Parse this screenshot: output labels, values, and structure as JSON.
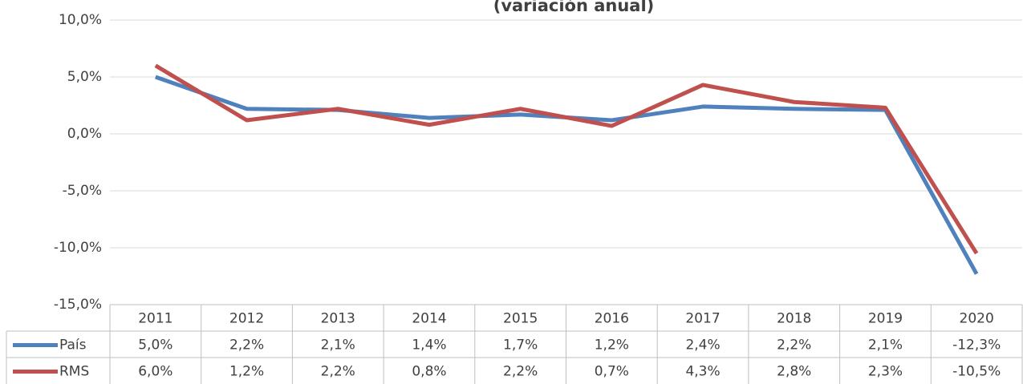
{
  "chart_data": {
    "type": "line",
    "title": "(variación anual)",
    "categories": [
      "2011",
      "2012",
      "2013",
      "2014",
      "2015",
      "2016",
      "2017",
      "2018",
      "2019",
      "2020"
    ],
    "series": [
      {
        "name": "País",
        "color": "#4f81bd",
        "values": [
          5.0,
          2.2,
          2.1,
          1.4,
          1.7,
          1.2,
          2.4,
          2.2,
          2.1,
          -12.3
        ],
        "value_labels": [
          "5,0%",
          "2,2%",
          "2,1%",
          "1,4%",
          "1,7%",
          "1,2%",
          "2,4%",
          "2,2%",
          "2,1%",
          "-12,3%"
        ]
      },
      {
        "name": "RMS",
        "color": "#c0504d",
        "values": [
          6.0,
          1.2,
          2.2,
          0.8,
          2.2,
          0.7,
          4.3,
          2.8,
          2.3,
          -10.5
        ],
        "value_labels": [
          "6,0%",
          "1,2%",
          "2,2%",
          "0,8%",
          "2,2%",
          "0,7%",
          "4,3%",
          "2,8%",
          "2,3%",
          "-10,5%"
        ]
      }
    ],
    "ylim": [
      -15,
      10
    ],
    "yticks": [
      {
        "value": -15,
        "label": "-15,0%"
      },
      {
        "value": -10,
        "label": "-10,0%"
      },
      {
        "value": -5,
        "label": "-5,0%"
      },
      {
        "value": 0,
        "label": "0,0%"
      },
      {
        "value": 5,
        "label": "5,0%"
      },
      {
        "value": 10,
        "label": "10,0%"
      }
    ],
    "grid": true
  }
}
